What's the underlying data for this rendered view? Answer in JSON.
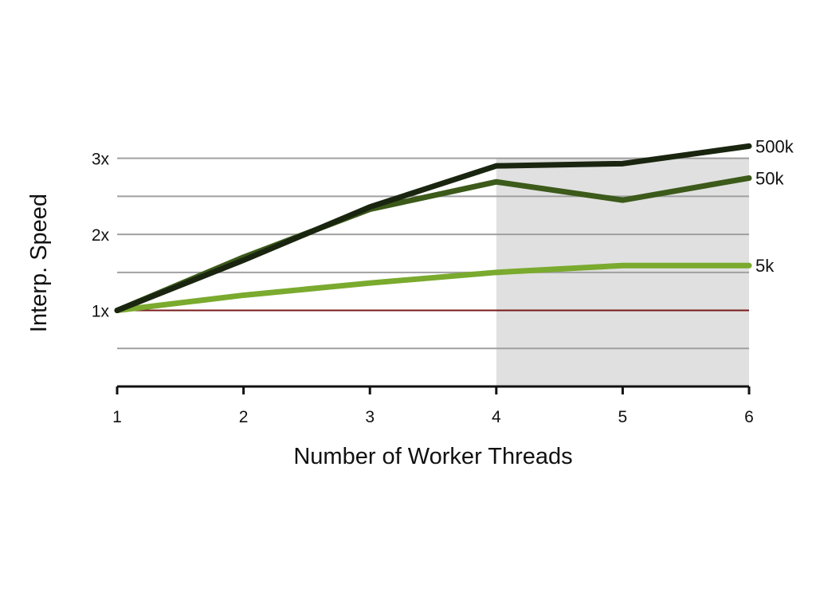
{
  "chart_data": {
    "type": "line",
    "title": "",
    "xlabel": "Number of Worker Threads",
    "ylabel": "Interp. Speed",
    "x": [
      1,
      2,
      3,
      4,
      5,
      6
    ],
    "xlim": [
      1,
      6
    ],
    "ylim": [
      0,
      3.3
    ],
    "y_ticks": [
      {
        "value": 1,
        "label": "1x"
      },
      {
        "value": 2,
        "label": "2x"
      },
      {
        "value": 3,
        "label": "3x"
      }
    ],
    "x_ticks": [
      {
        "value": 1,
        "label": "1"
      },
      {
        "value": 2,
        "label": "2"
      },
      {
        "value": 3,
        "label": "3"
      },
      {
        "value": 4,
        "label": "4"
      },
      {
        "value": 5,
        "label": "5"
      },
      {
        "value": 6,
        "label": "6"
      }
    ],
    "gridlines_y": [
      0.5,
      1.5,
      2,
      2.5,
      3
    ],
    "grid": true,
    "legend": "inline labels at right end of each line",
    "shaded_region": {
      "x_start": 4,
      "x_end": 6,
      "color": "#e0e0e0"
    },
    "baseline": {
      "y": 1,
      "color": "#7a1a1a"
    },
    "series": [
      {
        "name": "5k",
        "values": [
          1.0,
          1.2,
          1.36,
          1.5,
          1.59,
          1.59
        ],
        "color": "#7aaa2e"
      },
      {
        "name": "50k",
        "values": [
          1.0,
          1.7,
          2.33,
          2.69,
          2.45,
          2.74
        ],
        "color": "#3c5a1a"
      },
      {
        "name": "500k",
        "values": [
          1.0,
          1.66,
          2.36,
          2.9,
          2.93,
          3.16
        ],
        "color": "#1a2510"
      }
    ]
  }
}
